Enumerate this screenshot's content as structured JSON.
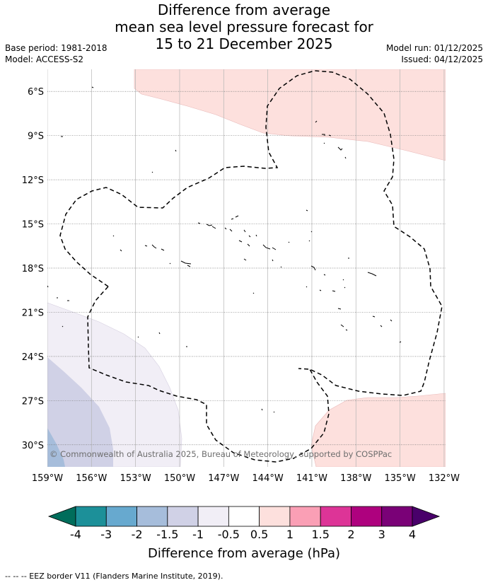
{
  "title": {
    "line1": "Difference from average",
    "line2": "mean sea level pressure forecast for",
    "line3": "15 to 21 December 2025"
  },
  "meta": {
    "base_period": "Base period: 1981-2018",
    "model": "Model: ACCESS-S2",
    "model_run": "Model run: 01/12/2025",
    "issued": "Issued: 04/12/2025"
  },
  "map": {
    "lon_range": [
      -159,
      -131.9
    ],
    "lat_range": [
      -31.5,
      -4.5
    ],
    "lon_ticks": [
      -159,
      -156,
      -153,
      -150,
      -147,
      -144,
      -141,
      -138,
      -135,
      -132
    ],
    "lon_tick_labels": [
      "159°W",
      "156°W",
      "153°W",
      "150°W",
      "147°W",
      "144°W",
      "141°W",
      "138°W",
      "135°W",
      "132°W"
    ],
    "lat_ticks": [
      -6,
      -9,
      -12,
      -15,
      -18,
      -21,
      -24,
      -27,
      -30
    ],
    "lat_tick_labels": [
      "6°S",
      "9°S",
      "12°S",
      "15°S",
      "18°S",
      "21°S",
      "24°S",
      "27°S",
      "30°S"
    ],
    "copyright": "© Commonwealth of Australia 2025, Bureau of Meteorology, supported by COSPPac"
  },
  "colorbar": {
    "label": "Difference from average (hPa)",
    "tick_labels": [
      "-4",
      "-3",
      "-2",
      "-1.5",
      "-1",
      "-0.5",
      "0.5",
      "1",
      "1.5",
      "2",
      "3",
      "4"
    ],
    "colors": [
      "#006d5b",
      "#1c9099",
      "#67a9cf",
      "#a6bddb",
      "#d0d1e6",
      "#f1eef6",
      "#ffffff",
      "#fde0dd",
      "#fa9fb5",
      "#dd3497",
      "#ae017e",
      "#7a0177",
      "#49006a"
    ]
  },
  "footer": "--  --  -- EEZ border V11 (Flanders Marine Institute, 2019)."
}
